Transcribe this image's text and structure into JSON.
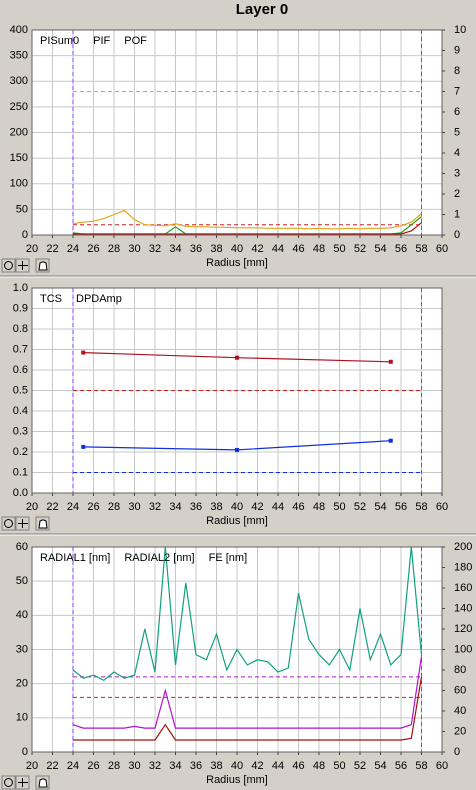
{
  "page_title": "Layer 0",
  "chart_data": [
    {
      "type": "line",
      "xlabel": "Radius [mm]",
      "x": [
        24,
        25,
        26,
        27,
        28,
        29,
        30,
        31,
        32,
        33,
        34,
        35,
        36,
        37,
        38,
        39,
        40,
        41,
        42,
        43,
        44,
        45,
        46,
        47,
        48,
        49,
        50,
        51,
        52,
        53,
        54,
        55,
        56,
        57,
        58
      ],
      "xlim": [
        20,
        60
      ],
      "xticks": [
        20,
        22,
        24,
        26,
        28,
        30,
        32,
        34,
        36,
        38,
        40,
        42,
        44,
        46,
        48,
        50,
        52,
        54,
        56,
        58,
        60
      ],
      "ylim": [
        0,
        400
      ],
      "yticks": [
        0,
        50,
        100,
        150,
        200,
        250,
        300,
        350,
        400
      ],
      "y2lim": [
        0,
        10
      ],
      "y2ticks": [
        0,
        1,
        2,
        3,
        4,
        5,
        6,
        7,
        8,
        9,
        10
      ],
      "grid": true,
      "xmarkers": [
        24,
        58
      ],
      "xmarker_color": "#8040ff",
      "reference_lines": [
        {
          "value": 280,
          "color": "#e8a317"
        },
        {
          "value": 20,
          "color": "#d02020"
        }
      ],
      "series": [
        {
          "name": "PISum0",
          "color": "#e8a317",
          "values": [
            22,
            25,
            27,
            32,
            40,
            48,
            30,
            20,
            19,
            18,
            22,
            17,
            16,
            16,
            15,
            15,
            14,
            14,
            14,
            13,
            13,
            13,
            13,
            12,
            13,
            12,
            12,
            13,
            12,
            13,
            13,
            14,
            18,
            25,
            42
          ]
        },
        {
          "name": "PIF",
          "color": "#20a020",
          "axis": "y2",
          "values": [
            0.1,
            0.05,
            0.05,
            0.05,
            0.05,
            0.05,
            0.05,
            0.05,
            0.05,
            0.05,
            0.4,
            0.05,
            0.05,
            0.05,
            0.05,
            0.05,
            0.05,
            0.05,
            0.05,
            0.05,
            0.05,
            0.05,
            0.05,
            0.05,
            0.05,
            0.05,
            0.05,
            0.05,
            0.05,
            0.05,
            0.05,
            0.05,
            0.1,
            0.5,
            0.9
          ]
        },
        {
          "name": "POF",
          "color": "#c01010",
          "axis": "y2",
          "values": [
            0.05,
            0.05,
            0.05,
            0.05,
            0.05,
            0.05,
            0.05,
            0.05,
            0.05,
            0.05,
            0.05,
            0.05,
            0.05,
            0.05,
            0.05,
            0.05,
            0.05,
            0.05,
            0.05,
            0.05,
            0.05,
            0.05,
            0.05,
            0.05,
            0.05,
            0.05,
            0.05,
            0.05,
            0.05,
            0.05,
            0.05,
            0.05,
            0.05,
            0.2,
            0.6
          ]
        }
      ]
    },
    {
      "type": "line",
      "xlabel": "Radius [mm]",
      "x": [
        25,
        40,
        55
      ],
      "xlim": [
        20,
        60
      ],
      "xticks": [
        20,
        22,
        24,
        26,
        28,
        30,
        32,
        34,
        36,
        38,
        40,
        42,
        44,
        46,
        48,
        50,
        52,
        54,
        56,
        58,
        60
      ],
      "ylim": [
        0,
        1
      ],
      "yticks": [
        {
          "value": 0,
          "label": "0.0"
        },
        0.1,
        0.2,
        0.3,
        0.4,
        0.5,
        0.6,
        0.7,
        0.8,
        0.9,
        {
          "value": 1,
          "label": "1.0"
        }
      ],
      "grid": true,
      "markers": true,
      "xmarkers": [
        24,
        58
      ],
      "xmarker_color": "#8040ff",
      "reference_lines": [
        {
          "value": 0.5,
          "color": "#d02020"
        },
        {
          "value": 0.1,
          "color": "#1030e0"
        }
      ],
      "series": [
        {
          "name": "TCS",
          "color": "#1030e0",
          "values": [
            0.225,
            0.21,
            0.255
          ]
        },
        {
          "name": "DPDAmp",
          "color": "#b01020",
          "values": [
            0.685,
            0.66,
            0.64
          ]
        }
      ]
    },
    {
      "type": "line",
      "xlabel": "Radius [mm]",
      "x": [
        24,
        25,
        26,
        27,
        28,
        29,
        30,
        31,
        32,
        33,
        34,
        35,
        36,
        37,
        38,
        39,
        40,
        41,
        42,
        43,
        44,
        45,
        46,
        47,
        48,
        49,
        50,
        51,
        52,
        53,
        54,
        55,
        56,
        57,
        58
      ],
      "xlim": [
        20,
        60
      ],
      "xticks": [
        20,
        22,
        24,
        26,
        28,
        30,
        32,
        34,
        36,
        38,
        40,
        42,
        44,
        46,
        48,
        50,
        52,
        54,
        56,
        58,
        60
      ],
      "ylim": [
        0,
        60
      ],
      "yticks": [
        0,
        10,
        20,
        30,
        40,
        50,
        60
      ],
      "y2lim": [
        0,
        200
      ],
      "y2ticks": [
        0,
        20,
        40,
        60,
        80,
        100,
        120,
        140,
        160,
        180,
        200
      ],
      "grid": true,
      "xmarkers": [
        24,
        58
      ],
      "xmarker_color": "#8040ff",
      "reference_lines": [
        {
          "value": 22,
          "color": "#b010d0"
        },
        {
          "value": 16,
          "color": "#d02020"
        }
      ],
      "series": [
        {
          "name": "RADIAL1 [nm]",
          "color": "#b010d0",
          "values": [
            8,
            7,
            7,
            7,
            7,
            7,
            7.5,
            7,
            7,
            18,
            7,
            7,
            7,
            7,
            7,
            7,
            7,
            7,
            7,
            7,
            7,
            7,
            7,
            7,
            7,
            7,
            7,
            7,
            7,
            7,
            7,
            7,
            7,
            8,
            28
          ]
        },
        {
          "name": "RADIAL2 [nm]",
          "color": "#a01010",
          "values": [
            3.5,
            3.5,
            3.5,
            3.5,
            3.5,
            3.5,
            3.5,
            3.5,
            3.5,
            8,
            3.5,
            3.5,
            3.5,
            3.5,
            3.5,
            3.5,
            3.5,
            3.5,
            3.5,
            3.5,
            3.5,
            3.5,
            3.5,
            3.5,
            3.5,
            3.5,
            3.5,
            3.5,
            3.5,
            3.5,
            3.5,
            3.5,
            3.5,
            4,
            22
          ]
        },
        {
          "name": "FE [nm]",
          "color": "#10a080",
          "axis": "y2",
          "values": [
            80,
            72,
            75,
            70,
            78,
            72,
            75,
            120,
            78,
            200,
            85,
            165,
            95,
            90,
            115,
            80,
            100,
            85,
            90,
            88,
            78,
            82,
            155,
            110,
            95,
            85,
            100,
            80,
            140,
            90,
            115,
            85,
            95,
            200,
            95
          ]
        }
      ]
    }
  ]
}
